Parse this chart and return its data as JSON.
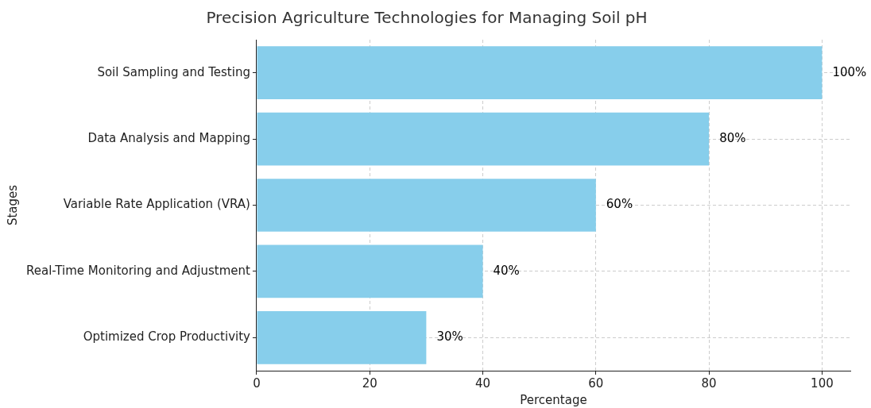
{
  "chart_data": {
    "type": "bar",
    "orientation": "horizontal",
    "title": "Precision Agriculture Technologies for Managing Soil pH",
    "xlabel": "Percentage",
    "ylabel": "Stages",
    "categories": [
      "Soil Sampling and Testing",
      "Data Analysis and Mapping",
      "Variable Rate Application (VRA)",
      "Real-Time Monitoring and Adjustment",
      "Optimized Crop Productivity"
    ],
    "values": [
      100,
      80,
      60,
      40,
      30
    ],
    "value_labels": [
      "100%",
      "80%",
      "60%",
      "40%",
      "30%"
    ],
    "color": "#87ceeb",
    "xlim": [
      0,
      105
    ],
    "xticks": [
      0,
      20,
      40,
      60,
      80,
      100
    ],
    "grid": true,
    "legend": false
  }
}
